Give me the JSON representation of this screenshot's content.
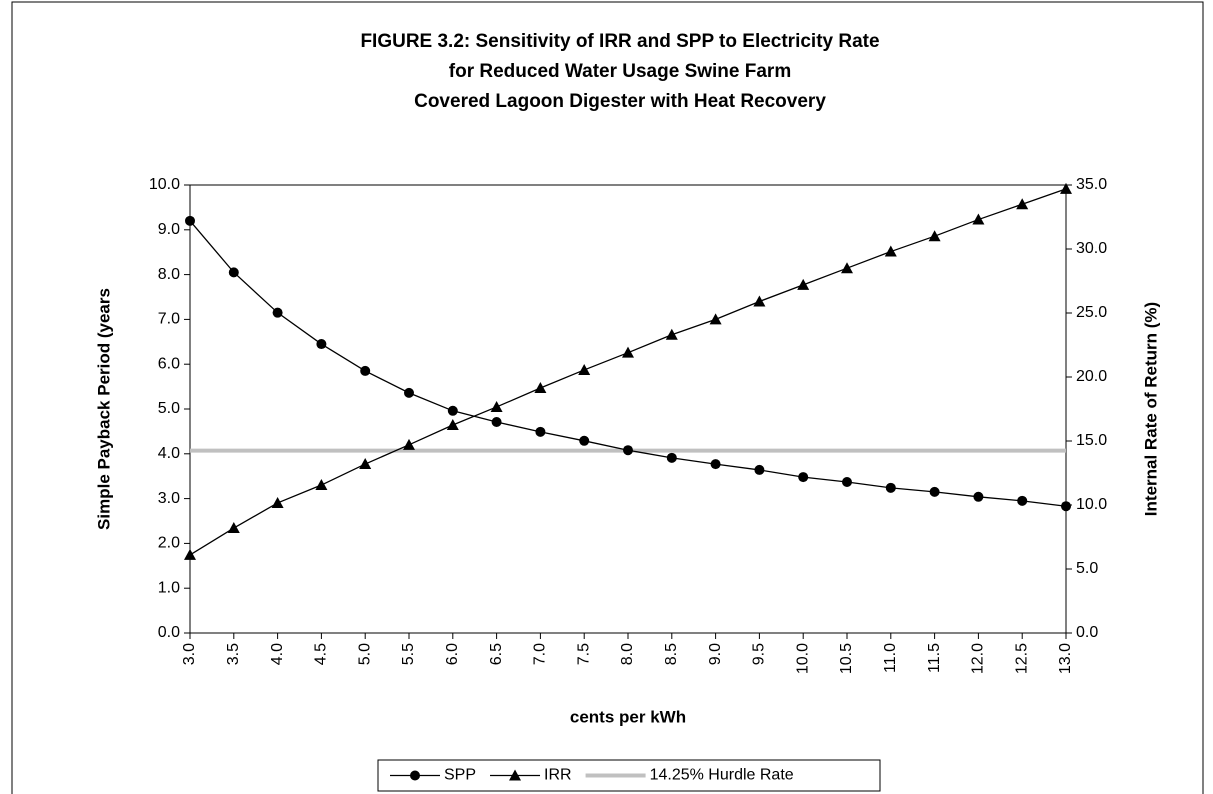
{
  "chart_data": {
    "type": "line",
    "title": [
      "FIGURE 3.2:  Sensitivity of IRR and SPP to Electricity Rate",
      "for Reduced Water Usage Swine Farm",
      "Covered Lagoon Digester with Heat Recovery"
    ],
    "xlabel": "cents per kWh",
    "ylabel": "Simple Payback Period (years",
    "y2label": "Internal Rate of Return (%)",
    "categories": [
      "3.0",
      "3.5",
      "4.0",
      "4.5",
      "5.0",
      "5.5",
      "6.0",
      "6.5",
      "7.0",
      "7.5",
      "8.0",
      "8.5",
      "9.0",
      "9.5",
      "10.0",
      "10.5",
      "11.0",
      "11.5",
      "12.0",
      "12.5",
      "13.0"
    ],
    "ylim": [
      0,
      10
    ],
    "yticks": [
      {
        "value": 0,
        "label": "0.0"
      },
      {
        "value": 1,
        "label": "1.0"
      },
      {
        "value": 2,
        "label": "2.0"
      },
      {
        "value": 3,
        "label": "3.0"
      },
      {
        "value": 4,
        "label": "4.0"
      },
      {
        "value": 5,
        "label": "5.0"
      },
      {
        "value": 6,
        "label": "6.0"
      },
      {
        "value": 7,
        "label": "7.0"
      },
      {
        "value": 8,
        "label": "8.0"
      },
      {
        "value": 9,
        "label": "9.0"
      },
      {
        "value": 10,
        "label": "10.0"
      }
    ],
    "y2lim": [
      0,
      35
    ],
    "y2ticks": [
      {
        "value": 0,
        "label": "0.0"
      },
      {
        "value": 5,
        "label": "5.0"
      },
      {
        "value": 10,
        "label": "10.0"
      },
      {
        "value": 15,
        "label": "15.0"
      },
      {
        "value": 20,
        "label": "20.0"
      },
      {
        "value": 25,
        "label": "25.0"
      },
      {
        "value": 30,
        "label": "30.0"
      },
      {
        "value": 35,
        "label": "35.0"
      }
    ],
    "legend": "bottom",
    "series": [
      {
        "name": "SPP",
        "color": "#000000",
        "marker": "circle",
        "values": [
          9.2,
          8.05,
          7.15,
          6.45,
          5.85,
          5.36,
          4.96,
          4.71,
          4.49,
          4.29,
          4.08,
          3.91,
          3.77,
          3.64,
          3.48,
          3.37,
          3.24,
          3.15,
          3.04,
          2.95,
          2.83
        ]
      },
      {
        "name": "IRR",
        "color": "#000000",
        "marker": "triangle",
        "axis": "y2",
        "values": [
          6.1,
          8.2,
          10.16,
          11.56,
          13.2,
          14.7,
          16.25,
          17.66,
          19.14,
          20.55,
          21.9,
          23.3,
          24.5,
          25.9,
          27.2,
          28.5,
          29.8,
          31.0,
          32.3,
          33.5,
          34.7
        ]
      },
      {
        "name": "14.25% Hurdle Rate",
        "color": "#c0c0c0",
        "axis": "y2",
        "values": [
          14.25,
          14.25,
          14.25,
          14.25,
          14.25,
          14.25,
          14.25,
          14.25,
          14.25,
          14.25,
          14.25,
          14.25,
          14.25,
          14.25,
          14.25,
          14.25,
          14.25,
          14.25,
          14.25,
          14.25,
          14.25
        ]
      }
    ]
  }
}
